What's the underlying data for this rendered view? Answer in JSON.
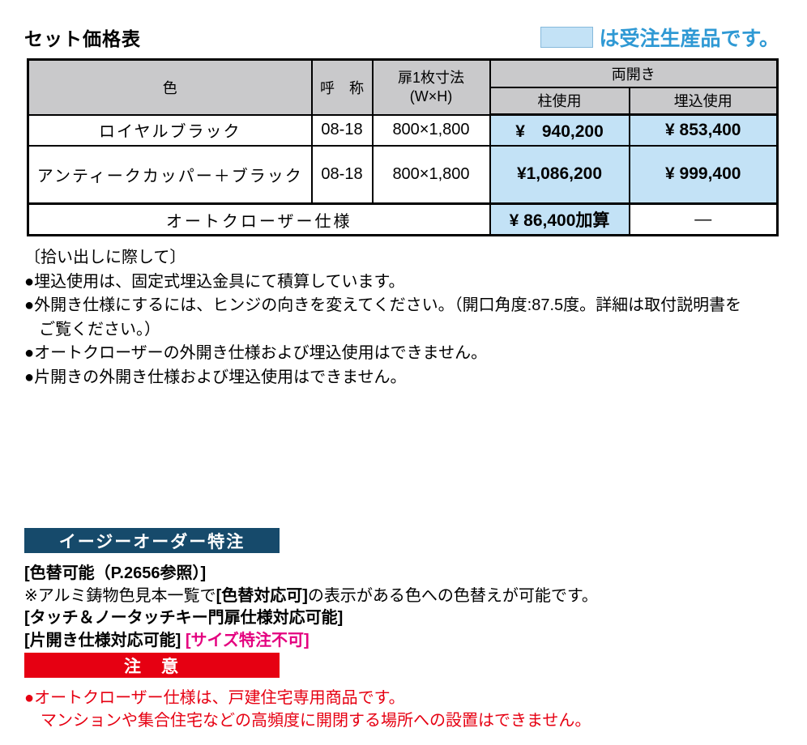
{
  "colors": {
    "highlight_blue": "#c3e2f6",
    "legend_blue": "#2f99d4",
    "header_gray": "#c9c9cb",
    "navy": "#164a6b",
    "red": "#e60012",
    "magenta": "#e4007f"
  },
  "page": {
    "title": "セット価格表"
  },
  "legend": {
    "label": "は受注生産品です。"
  },
  "table": {
    "headers": {
      "color": "色",
      "name": "呼　称",
      "door_size_line1": "扉1枚寸法",
      "door_size_line2": "(W×H)",
      "double_leaf": "両開き",
      "pillar_use": "柱使用",
      "embedded_use": "埋込使用"
    },
    "rows": [
      {
        "color": "ロイヤルブラック",
        "name": "08-18",
        "door_size": "800×1,800",
        "pillar_price": "¥　940,200",
        "embedded_price": "¥ 853,400"
      },
      {
        "color": "アンティークカッパー＋ブラック",
        "name": "08-18",
        "door_size": "800×1,800",
        "pillar_price": "¥1,086,200",
        "embedded_price": "¥ 999,400"
      }
    ],
    "option_row": {
      "label": "オートクローザー仕様",
      "pillar_price": "¥ 86,400加算",
      "embedded_price": "—"
    }
  },
  "notes": {
    "heading": "〔拾い出しに際して〕",
    "lines": [
      "●埋込使用は、固定式埋込金具にて積算しています。",
      "●外開き仕様にするには、ヒンジの向きを変えてください。（開口角度:87.5度。詳細は取付説明書を",
      "ご覧ください。）",
      "●オートクローザーの外開き仕様および埋込使用はできません。",
      "●片開きの外開き仕様および埋込使用はできません。"
    ]
  },
  "easy_order": {
    "heading": "イージーオーダー特注",
    "line1": "[色替可能（P.2656参照）]",
    "line2_prefix": "※アルミ鋳物色見本一覧で",
    "line2_bold": "[色替対応可]",
    "line2_suffix": "の表示がある色への色替えが可能です。",
    "line3": "[タッチ＆ノータッチキー門扉仕様対応可能]",
    "line4_black": "[片開き仕様対応可能]",
    "line4_magenta": "[サイズ特注不可]"
  },
  "caution": {
    "heading": "注　意",
    "lines": [
      "●オートクローザー仕様は、戸建住宅専用商品です。",
      "マンションや集合住宅などの高頻度に開閉する場所への設置はできません。"
    ]
  }
}
